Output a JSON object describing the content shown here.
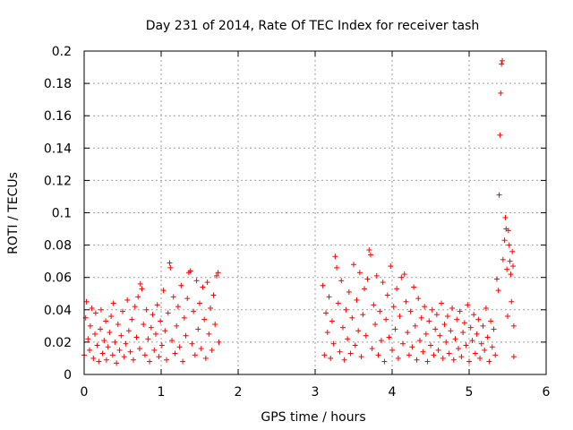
{
  "chart_data": {
    "type": "scatter",
    "title": "Day 231 of 2014, Rate Of TEC Index for receiver tash",
    "xlabel": "GPS time / hours",
    "ylabel": "ROTI / TECUs",
    "xlim": [
      0,
      6
    ],
    "ylim": [
      0,
      0.2
    ],
    "xticks": [
      0,
      1,
      2,
      3,
      4,
      5,
      6
    ],
    "xtick_labels": [
      "0",
      "1",
      "2",
      "3",
      "4",
      "5",
      "6"
    ],
    "yticks": [
      0,
      0.02,
      0.04,
      0.06,
      0.08,
      0.1,
      0.12,
      0.14,
      0.16,
      0.18,
      0.2
    ],
    "ytick_labels": [
      "0",
      "0.02",
      "0.04",
      "0.06",
      "0.08",
      "0.1",
      "0.12",
      "0.14",
      "0.16",
      "0.18",
      "0.2"
    ],
    "grid": true,
    "marker": "+",
    "color": "#ff0000",
    "series": [
      {
        "name": "ROTI",
        "points": [
          [
            0.0,
            0.012
          ],
          [
            0.02,
            0.035
          ],
          [
            0.03,
            0.045
          ],
          [
            0.05,
            0.022
          ],
          [
            0.07,
            0.015
          ],
          [
            0.08,
            0.03
          ],
          [
            0.1,
            0.041
          ],
          [
            0.12,
            0.01
          ],
          [
            0.14,
            0.025
          ],
          [
            0.15,
            0.038
          ],
          [
            0.17,
            0.018
          ],
          [
            0.19,
            0.008
          ],
          [
            0.21,
            0.028
          ],
          [
            0.22,
            0.04
          ],
          [
            0.24,
            0.013
          ],
          [
            0.26,
            0.021
          ],
          [
            0.28,
            0.033
          ],
          [
            0.29,
            0.009
          ],
          [
            0.31,
            0.017
          ],
          [
            0.33,
            0.026
          ],
          [
            0.35,
            0.036
          ],
          [
            0.37,
            0.012
          ],
          [
            0.38,
            0.044
          ],
          [
            0.4,
            0.02
          ],
          [
            0.42,
            0.007
          ],
          [
            0.44,
            0.031
          ],
          [
            0.46,
            0.015
          ],
          [
            0.48,
            0.024
          ],
          [
            0.5,
            0.039
          ],
          [
            0.52,
            0.011
          ],
          [
            0.54,
            0.019
          ],
          [
            0.56,
            0.046
          ],
          [
            0.58,
            0.027
          ],
          [
            0.6,
            0.014
          ],
          [
            0.62,
            0.034
          ],
          [
            0.64,
            0.009
          ],
          [
            0.66,
            0.042
          ],
          [
            0.68,
            0.023
          ],
          [
            0.7,
            0.048
          ],
          [
            0.72,
            0.016
          ],
          [
            0.73,
            0.056
          ],
          [
            0.75,
            0.053
          ],
          [
            0.77,
            0.031
          ],
          [
            0.79,
            0.012
          ],
          [
            0.81,
            0.04
          ],
          [
            0.83,
            0.022
          ],
          [
            0.85,
            0.008
          ],
          [
            0.87,
            0.029
          ],
          [
            0.89,
            0.037
          ],
          [
            0.91,
            0.015
          ],
          [
            0.93,
            0.025
          ],
          [
            0.95,
            0.043
          ],
          [
            0.97,
            0.011
          ],
          [
            0.99,
            0.033
          ],
          [
            1.01,
            0.018
          ],
          [
            1.03,
            0.052
          ],
          [
            1.05,
            0.027
          ],
          [
            1.07,
            0.009
          ],
          [
            1.09,
            0.038
          ],
          [
            1.11,
            0.069
          ],
          [
            1.12,
            0.066
          ],
          [
            1.14,
            0.021
          ],
          [
            1.16,
            0.048
          ],
          [
            1.18,
            0.013
          ],
          [
            1.2,
            0.03
          ],
          [
            1.22,
            0.042
          ],
          [
            1.24,
            0.017
          ],
          [
            1.26,
            0.055
          ],
          [
            1.28,
            0.008
          ],
          [
            1.3,
            0.035
          ],
          [
            1.32,
            0.024
          ],
          [
            1.34,
            0.047
          ],
          [
            1.36,
            0.063
          ],
          [
            1.38,
            0.064
          ],
          [
            1.4,
            0.019
          ],
          [
            1.42,
            0.039
          ],
          [
            1.44,
            0.012
          ],
          [
            1.46,
            0.058
          ],
          [
            1.48,
            0.028
          ],
          [
            1.5,
            0.044
          ],
          [
            1.52,
            0.016
          ],
          [
            1.54,
            0.054
          ],
          [
            1.56,
            0.034
          ],
          [
            1.58,
            0.01
          ],
          [
            1.6,
            0.057
          ],
          [
            1.62,
            0.025
          ],
          [
            1.64,
            0.041
          ],
          [
            1.66,
            0.015
          ],
          [
            1.68,
            0.049
          ],
          [
            1.7,
            0.031
          ],
          [
            1.72,
            0.061
          ],
          [
            1.74,
            0.063
          ],
          [
            1.75,
            0.02
          ],
          [
            3.1,
            0.055
          ],
          [
            3.12,
            0.012
          ],
          [
            3.14,
            0.038
          ],
          [
            3.16,
            0.026
          ],
          [
            3.18,
            0.048
          ],
          [
            3.2,
            0.01
          ],
          [
            3.22,
            0.033
          ],
          [
            3.24,
            0.019
          ],
          [
            3.26,
            0.073
          ],
          [
            3.28,
            0.066
          ],
          [
            3.3,
            0.044
          ],
          [
            3.32,
            0.014
          ],
          [
            3.34,
            0.058
          ],
          [
            3.36,
            0.029
          ],
          [
            3.38,
            0.009
          ],
          [
            3.4,
            0.04
          ],
          [
            3.42,
            0.022
          ],
          [
            3.44,
            0.051
          ],
          [
            3.46,
            0.013
          ],
          [
            3.48,
            0.035
          ],
          [
            3.5,
            0.068
          ],
          [
            3.52,
            0.018
          ],
          [
            3.54,
            0.046
          ],
          [
            3.56,
            0.027
          ],
          [
            3.58,
            0.063
          ],
          [
            3.6,
            0.011
          ],
          [
            3.62,
            0.037
          ],
          [
            3.64,
            0.053
          ],
          [
            3.66,
            0.024
          ],
          [
            3.68,
            0.059
          ],
          [
            3.7,
            0.077
          ],
          [
            3.72,
            0.074
          ],
          [
            3.74,
            0.016
          ],
          [
            3.76,
            0.043
          ],
          [
            3.78,
            0.031
          ],
          [
            3.8,
            0.061
          ],
          [
            3.82,
            0.012
          ],
          [
            3.84,
            0.039
          ],
          [
            3.86,
            0.021
          ],
          [
            3.88,
            0.057
          ],
          [
            3.9,
            0.008
          ],
          [
            3.92,
            0.034
          ],
          [
            3.94,
            0.049
          ],
          [
            3.96,
            0.023
          ],
          [
            3.98,
            0.067
          ],
          [
            4.0,
            0.015
          ],
          [
            4.02,
            0.042
          ],
          [
            4.04,
            0.028
          ],
          [
            4.06,
            0.053
          ],
          [
            4.08,
            0.01
          ],
          [
            4.1,
            0.036
          ],
          [
            4.12,
            0.06
          ],
          [
            4.14,
            0.019
          ],
          [
            4.16,
            0.062
          ],
          [
            4.18,
            0.045
          ],
          [
            4.2,
            0.026
          ],
          [
            4.22,
            0.012
          ],
          [
            4.24,
            0.039
          ],
          [
            4.26,
            0.017
          ],
          [
            4.28,
            0.054
          ],
          [
            4.3,
            0.03
          ],
          [
            4.32,
            0.009
          ],
          [
            4.34,
            0.047
          ],
          [
            4.36,
            0.021
          ],
          [
            4.38,
            0.035
          ],
          [
            4.4,
            0.014
          ],
          [
            4.42,
            0.042
          ],
          [
            4.44,
            0.025
          ],
          [
            4.46,
            0.008
          ],
          [
            4.48,
            0.033
          ],
          [
            4.5,
            0.018
          ],
          [
            4.52,
            0.04
          ],
          [
            4.54,
            0.012
          ],
          [
            4.56,
            0.028
          ],
          [
            4.58,
            0.037
          ],
          [
            4.6,
            0.015
          ],
          [
            4.62,
            0.024
          ],
          [
            4.64,
            0.044
          ],
          [
            4.66,
            0.01
          ],
          [
            4.68,
            0.031
          ],
          [
            4.7,
            0.02
          ],
          [
            4.72,
            0.036
          ],
          [
            4.74,
            0.013
          ],
          [
            4.76,
            0.027
          ],
          [
            4.78,
            0.041
          ],
          [
            4.8,
            0.009
          ],
          [
            4.82,
            0.022
          ],
          [
            4.84,
            0.034
          ],
          [
            4.86,
            0.016
          ],
          [
            4.88,
            0.039
          ],
          [
            4.9,
            0.011
          ],
          [
            4.92,
            0.026
          ],
          [
            4.94,
            0.032
          ],
          [
            4.96,
            0.018
          ],
          [
            4.98,
            0.043
          ],
          [
            5.0,
            0.008
          ],
          [
            5.02,
            0.029
          ],
          [
            5.04,
            0.021
          ],
          [
            5.06,
            0.037
          ],
          [
            5.08,
            0.013
          ],
          [
            5.1,
            0.025
          ],
          [
            5.12,
            0.034
          ],
          [
            5.14,
            0.01
          ],
          [
            5.16,
            0.019
          ],
          [
            5.18,
            0.03
          ],
          [
            5.2,
            0.015
          ],
          [
            5.22,
            0.041
          ],
          [
            5.24,
            0.023
          ],
          [
            5.26,
            0.008
          ],
          [
            5.28,
            0.033
          ],
          [
            5.3,
            0.017
          ],
          [
            5.32,
            0.028
          ],
          [
            5.34,
            0.012
          ],
          [
            5.36,
            0.059
          ],
          [
            5.38,
            0.052
          ],
          [
            5.39,
            0.111
          ],
          [
            5.4,
            0.148
          ],
          [
            5.41,
            0.174
          ],
          [
            5.42,
            0.192
          ],
          [
            5.43,
            0.194
          ],
          [
            5.44,
            0.071
          ],
          [
            5.46,
            0.083
          ],
          [
            5.47,
            0.097
          ],
          [
            5.48,
            0.09
          ],
          [
            5.49,
            0.065
          ],
          [
            5.5,
            0.036
          ],
          [
            5.51,
            0.089
          ],
          [
            5.52,
            0.08
          ],
          [
            5.53,
            0.07
          ],
          [
            5.54,
            0.062
          ],
          [
            5.55,
            0.045
          ],
          [
            5.56,
            0.076
          ],
          [
            5.57,
            0.067
          ],
          [
            5.58,
            0.03
          ],
          [
            5.58,
            0.011
          ]
        ]
      }
    ]
  }
}
